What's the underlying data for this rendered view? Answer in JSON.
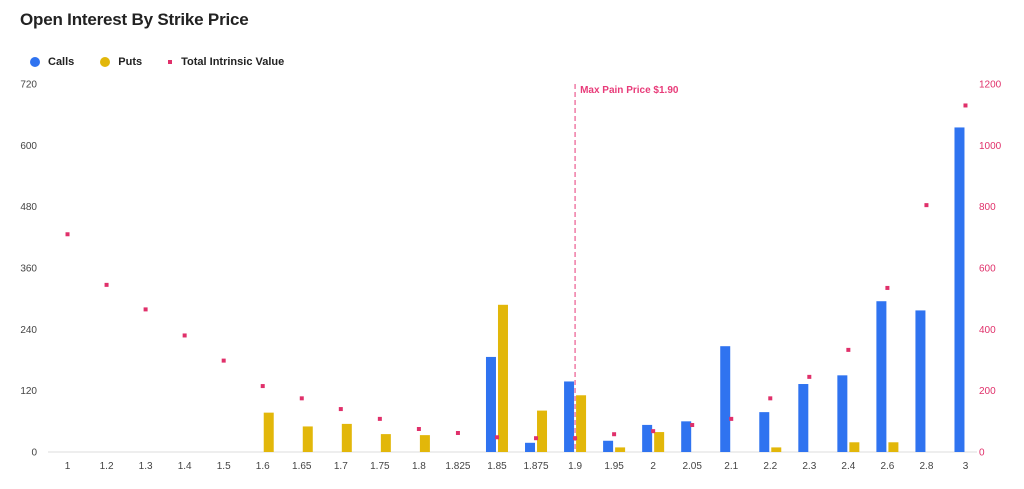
{
  "title": "Open Interest By Strike Price",
  "legend": {
    "calls": {
      "label": "Calls",
      "color": "#2f73f0"
    },
    "puts": {
      "label": "Puts",
      "color": "#e2b70a"
    },
    "intrinsic": {
      "label": "Total Intrinsic Value",
      "color": "#e0306a"
    }
  },
  "annotation": {
    "label": "Max Pain Price $1.90",
    "strike": "1.9",
    "color": "#e83b79"
  },
  "chart_data": {
    "type": "bar",
    "categories": [
      "1",
      "1.2",
      "1.3",
      "1.4",
      "1.5",
      "1.6",
      "1.65",
      "1.7",
      "1.75",
      "1.8",
      "1.825",
      "1.85",
      "1.875",
      "1.9",
      "1.95",
      "2",
      "2.05",
      "2.1",
      "2.2",
      "2.3",
      "2.4",
      "2.6",
      "2.8",
      "3"
    ],
    "series": [
      {
        "name": "Calls",
        "axis": "left",
        "mark": "bar",
        "values": [
          0,
          0,
          0,
          0,
          0,
          0,
          0,
          0,
          0,
          0,
          0,
          186,
          18,
          138,
          22,
          53,
          60,
          207,
          78,
          133,
          150,
          295,
          277,
          635
        ]
      },
      {
        "name": "Puts",
        "axis": "left",
        "mark": "bar",
        "values": [
          0,
          0,
          0,
          0,
          0,
          77,
          50,
          55,
          35,
          33,
          0,
          288,
          81,
          111,
          9,
          39,
          0,
          0,
          9,
          0,
          19,
          19,
          0,
          0
        ]
      },
      {
        "name": "Total Intrinsic Value",
        "axis": "right",
        "mark": "point",
        "values": [
          710,
          545,
          465,
          380,
          298,
          215,
          175,
          140,
          108,
          75,
          62,
          48,
          45,
          45,
          58,
          68,
          88,
          108,
          175,
          245,
          333,
          535,
          805,
          1130
        ]
      }
    ],
    "y_left": {
      "ticks": [
        "0",
        "120",
        "240",
        "360",
        "480",
        "600",
        "720"
      ],
      "lim": [
        0,
        720
      ]
    },
    "y_right": {
      "ticks": [
        "0",
        "200",
        "400",
        "600",
        "800",
        "1000",
        "1200"
      ],
      "lim": [
        0,
        1200
      ]
    },
    "grid": false,
    "legend_position": "top-left"
  }
}
